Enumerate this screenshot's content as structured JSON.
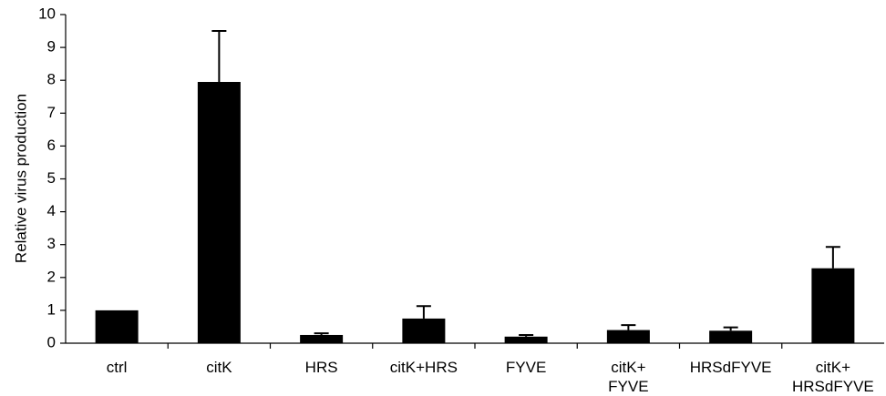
{
  "chart_data": {
    "type": "bar",
    "title": "",
    "xlabel": "",
    "ylabel": "Relative virus production",
    "ylim": [
      0,
      10
    ],
    "yticks": [
      0,
      1,
      2,
      3,
      4,
      5,
      6,
      7,
      8,
      9,
      10
    ],
    "categories": [
      [
        "ctrl"
      ],
      [
        "citK"
      ],
      [
        "HRS"
      ],
      [
        "citK+HRS"
      ],
      [
        "FYVE"
      ],
      [
        "citK+",
        "FYVE"
      ],
      [
        "HRSdFYVE"
      ],
      [
        "citK+",
        "HRSdFYVE"
      ]
    ],
    "series": [
      {
        "values": [
          1.0,
          7.95,
          0.25,
          0.75,
          0.2,
          0.4,
          0.38,
          2.28
        ],
        "error": [
          0.0,
          1.55,
          0.05,
          0.38,
          0.05,
          0.15,
          0.1,
          0.65
        ],
        "color": "#000000"
      }
    ],
    "grid": false,
    "legend": "none"
  }
}
